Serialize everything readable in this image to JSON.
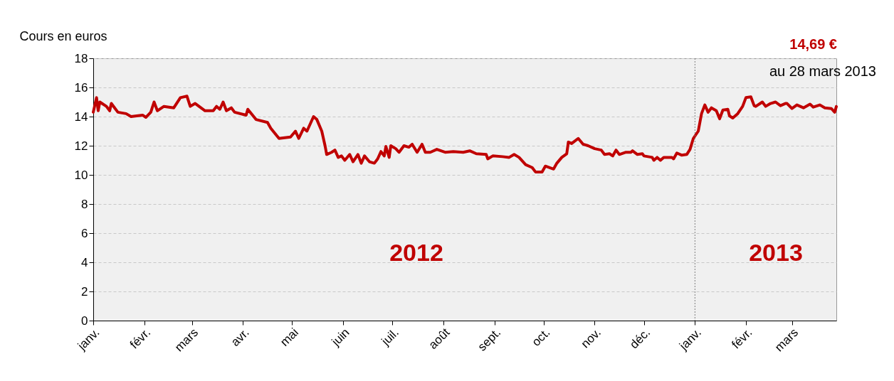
{
  "chart_data": {
    "type": "line",
    "ylabel": "Cours en euros",
    "annotations": [
      "14,69 €",
      "au 28 mars 2013",
      "2012",
      "2013"
    ],
    "x": [
      "2012-01-01",
      "2012-01-03",
      "2012-01-04",
      "2012-01-05",
      "2012-01-09",
      "2012-01-11",
      "2012-01-12",
      "2012-01-14",
      "2012-01-16",
      "2012-01-21",
      "2012-01-24",
      "2012-01-31",
      "2012-02-02",
      "2012-02-05",
      "2012-02-07",
      "2012-02-09",
      "2012-02-13",
      "2012-02-19",
      "2012-02-23",
      "2012-02-27",
      "2012-02-29",
      "2012-03-03",
      "2012-03-09",
      "2012-03-14",
      "2012-03-16",
      "2012-03-18",
      "2012-03-20",
      "2012-03-22",
      "2012-03-25",
      "2012-03-27",
      "2012-04-03",
      "2012-04-04",
      "2012-04-09",
      "2012-04-16",
      "2012-04-18",
      "2012-04-23",
      "2012-04-30",
      "2012-05-03",
      "2012-05-05",
      "2012-05-08",
      "2012-05-10",
      "2012-05-14",
      "2012-05-16",
      "2012-05-19",
      "2012-05-21",
      "2012-05-22",
      "2012-05-25",
      "2012-05-27",
      "2012-05-29",
      "2012-05-31",
      "2012-06-02",
      "2012-06-05",
      "2012-06-07",
      "2012-06-10",
      "2012-06-12",
      "2012-06-14",
      "2012-06-17",
      "2012-06-20",
      "2012-06-22",
      "2012-06-24",
      "2012-06-26",
      "2012-06-27",
      "2012-06-29",
      "2012-06-30",
      "2012-07-03",
      "2012-07-05",
      "2012-07-08",
      "2012-07-11",
      "2012-07-13",
      "2012-07-16",
      "2012-07-19",
      "2012-07-21",
      "2012-07-24",
      "2012-07-28",
      "2012-08-02",
      "2012-08-07",
      "2012-08-13",
      "2012-08-17",
      "2012-08-21",
      "2012-08-27",
      "2012-08-28",
      "2012-08-31",
      "2012-09-06",
      "2012-09-10",
      "2012-09-13",
      "2012-09-16",
      "2012-09-20",
      "2012-09-24",
      "2012-09-26",
      "2012-09-30",
      "2012-10-02",
      "2012-10-07",
      "2012-10-09",
      "2012-10-12",
      "2012-10-15",
      "2012-10-16",
      "2012-10-18",
      "2012-10-22",
      "2012-10-25",
      "2012-10-28",
      "2012-11-01",
      "2012-11-05",
      "2012-11-07",
      "2012-11-10",
      "2012-11-12",
      "2012-11-14",
      "2012-11-16",
      "2012-11-20",
      "2012-11-23",
      "2012-11-24",
      "2012-11-27",
      "2012-11-30",
      "2012-12-01",
      "2012-12-06",
      "2012-12-07",
      "2012-12-09",
      "2012-12-11",
      "2012-12-13",
      "2012-12-18",
      "2012-12-19",
      "2012-12-21",
      "2012-12-24",
      "2012-12-27",
      "2012-12-29",
      "2012-12-31",
      "2013-01-03",
      "2013-01-05",
      "2013-01-07",
      "2013-01-09",
      "2013-01-11",
      "2013-01-14",
      "2013-01-16",
      "2013-01-18",
      "2013-01-21",
      "2013-01-22",
      "2013-01-24",
      "2013-01-27",
      "2013-01-30",
      "2013-02-01",
      "2013-02-04",
      "2013-02-06",
      "2013-02-07",
      "2013-02-11",
      "2013-02-13",
      "2013-02-16",
      "2013-02-19",
      "2013-02-22",
      "2013-02-25",
      "2013-02-26",
      "2013-03-01",
      "2013-03-04",
      "2013-03-08",
      "2013-03-12",
      "2013-03-14",
      "2013-03-18",
      "2013-03-21",
      "2013-03-25",
      "2013-03-27",
      "2013-03-28"
    ],
    "series": [
      {
        "color": "#c00000",
        "values": [
          14.3,
          15.3,
          14.4,
          15.0,
          14.7,
          14.4,
          14.9,
          14.6,
          14.3,
          14.2,
          14.0,
          14.1,
          13.95,
          14.3,
          15.0,
          14.4,
          14.7,
          14.6,
          15.3,
          15.4,
          14.7,
          14.9,
          14.4,
          14.4,
          14.7,
          14.5,
          15.0,
          14.4,
          14.6,
          14.3,
          14.1,
          14.5,
          13.8,
          13.6,
          13.2,
          12.5,
          12.6,
          13.0,
          12.5,
          13.2,
          13.0,
          14.0,
          13.8,
          13.0,
          12.0,
          11.4,
          11.55,
          11.7,
          11.2,
          11.3,
          11.0,
          11.4,
          10.9,
          11.4,
          10.8,
          11.3,
          10.9,
          10.8,
          11.1,
          11.6,
          11.3,
          11.95,
          11.2,
          12.0,
          11.8,
          11.55,
          12.0,
          11.9,
          12.1,
          11.55,
          12.1,
          11.55,
          11.55,
          11.75,
          11.55,
          11.6,
          11.55,
          11.65,
          11.45,
          11.4,
          11.1,
          11.3,
          11.25,
          11.2,
          11.4,
          11.2,
          10.7,
          10.5,
          10.2,
          10.2,
          10.6,
          10.4,
          10.8,
          11.2,
          11.45,
          12.25,
          12.15,
          12.5,
          12.1,
          12.0,
          11.8,
          11.7,
          11.4,
          11.45,
          11.3,
          11.7,
          11.4,
          11.55,
          11.55,
          11.65,
          11.4,
          11.45,
          11.3,
          11.2,
          11.0,
          11.2,
          11.0,
          11.2,
          11.2,
          11.1,
          11.5,
          11.35,
          11.4,
          11.75,
          12.5,
          13.0,
          14.2,
          14.8,
          14.3,
          14.6,
          14.4,
          13.85,
          14.45,
          14.5,
          14.05,
          13.9,
          14.2,
          14.7,
          15.3,
          15.35,
          14.75,
          14.7,
          15.0,
          14.7,
          14.9,
          15.0,
          14.75,
          14.9,
          14.9,
          14.55,
          14.8,
          14.6,
          14.85,
          14.65,
          14.8,
          14.6,
          14.55,
          14.3,
          14.69
        ]
      }
    ],
    "xlim": [
      "2012-01-01",
      "2013-03-28"
    ],
    "xticks": [
      {
        "value": "2012-01-01",
        "label": "janv."
      },
      {
        "value": "2012-02-01",
        "label": "févr."
      },
      {
        "value": "2012-03-01",
        "label": "mars"
      },
      {
        "value": "2012-04-01",
        "label": "avr."
      },
      {
        "value": "2012-05-01",
        "label": "mai"
      },
      {
        "value": "2012-06-01",
        "label": "juin"
      },
      {
        "value": "2012-07-01",
        "label": "juil."
      },
      {
        "value": "2012-08-01",
        "label": "août"
      },
      {
        "value": "2012-09-01",
        "label": "sept."
      },
      {
        "value": "2012-10-01",
        "label": "oct."
      },
      {
        "value": "2012-11-01",
        "label": "nov."
      },
      {
        "value": "2012-12-01",
        "label": "déc."
      },
      {
        "value": "2013-01-01",
        "label": "janv."
      },
      {
        "value": "2013-02-01",
        "label": "févr."
      },
      {
        "value": "2013-03-01",
        "label": "mars"
      }
    ],
    "ylim": [
      0,
      18
    ],
    "yticks": [
      0,
      2,
      4,
      6,
      8,
      10,
      12,
      14,
      16,
      18
    ],
    "grid": "y",
    "marker": "none",
    "line_style": "solid",
    "ref_lines": [
      {
        "axis": "x",
        "value": "2013-01-01",
        "color": "#7f7f7f",
        "line_style": "dotted"
      }
    ]
  }
}
